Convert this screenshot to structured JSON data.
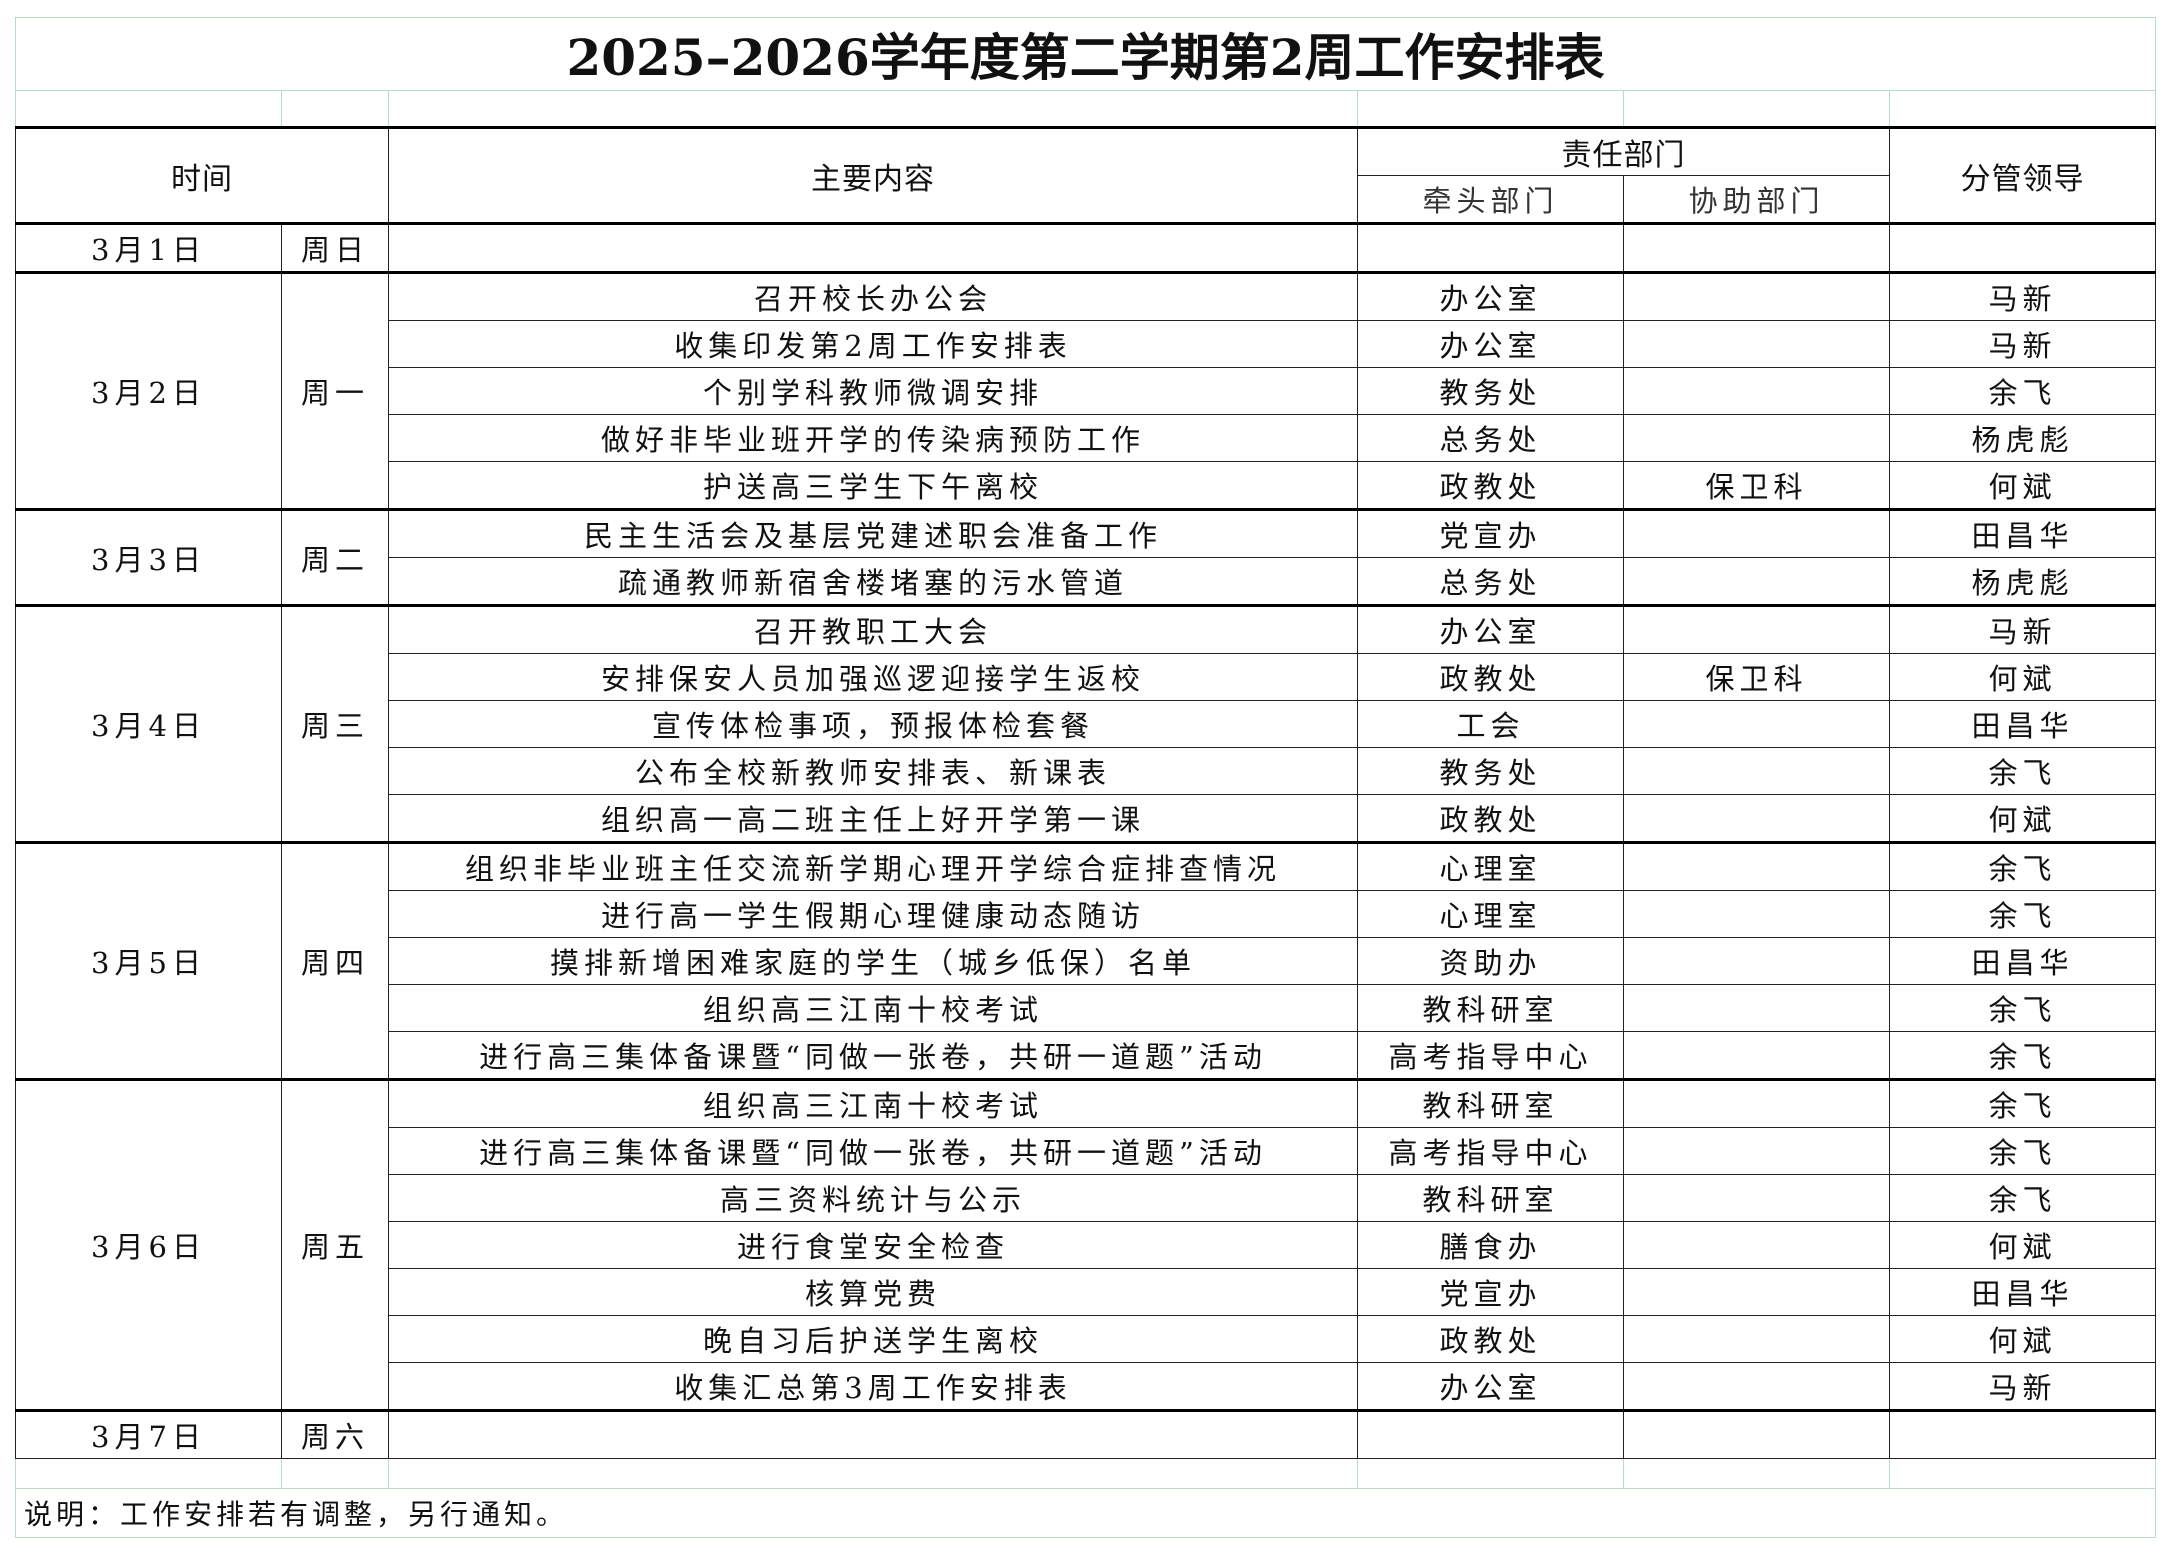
{
  "title": "2025–2026学年度第二学期第2周工作安排表",
  "headers": {
    "time": "时间",
    "content": "主要内容",
    "dept": "责任部门",
    "lead_dept": "牵头部门",
    "assist_dept": "协助部门",
    "leader": "分管领导"
  },
  "days": [
    {
      "date": "3月1日",
      "weekday": "周日",
      "items": [
        {
          "content": "",
          "lead": "",
          "assist": "",
          "leader": ""
        }
      ]
    },
    {
      "date": "3月2日",
      "weekday": "周一",
      "items": [
        {
          "content": "召开校长办公会",
          "lead": "办公室",
          "assist": "",
          "leader": "马新"
        },
        {
          "content": "收集印发第2周工作安排表",
          "lead": "办公室",
          "assist": "",
          "leader": "马新"
        },
        {
          "content": "个别学科教师微调安排",
          "lead": "教务处",
          "assist": "",
          "leader": "余飞"
        },
        {
          "content": "做好非毕业班开学的传染病预防工作",
          "lead": "总务处",
          "assist": "",
          "leader": "杨虎彪"
        },
        {
          "content": "护送高三学生下午离校",
          "lead": "政教处",
          "assist": "保卫科",
          "leader": "何斌"
        }
      ]
    },
    {
      "date": "3月3日",
      "weekday": "周二",
      "items": [
        {
          "content": "民主生活会及基层党建述职会准备工作",
          "lead": "党宣办",
          "assist": "",
          "leader": "田昌华"
        },
        {
          "content": "疏通教师新宿舍楼堵塞的污水管道",
          "lead": "总务处",
          "assist": "",
          "leader": "杨虎彪"
        }
      ]
    },
    {
      "date": "3月4日",
      "weekday": "周三",
      "items": [
        {
          "content": "召开教职工大会",
          "lead": "办公室",
          "assist": "",
          "leader": "马新"
        },
        {
          "content": "安排保安人员加强巡逻迎接学生返校",
          "lead": "政教处",
          "assist": "保卫科",
          "leader": "何斌"
        },
        {
          "content": "宣传体检事项，预报体检套餐",
          "lead": "工会",
          "assist": "",
          "leader": "田昌华"
        },
        {
          "content": "公布全校新教师安排表、新课表",
          "lead": "教务处",
          "assist": "",
          "leader": "余飞"
        },
        {
          "content": "组织高一高二班主任上好开学第一课",
          "lead": "政教处",
          "assist": "",
          "leader": "何斌"
        }
      ]
    },
    {
      "date": "3月5日",
      "weekday": "周四",
      "items": [
        {
          "content": "组织非毕业班主任交流新学期心理开学综合症排查情况",
          "lead": "心理室",
          "assist": "",
          "leader": "余飞"
        },
        {
          "content": "进行高一学生假期心理健康动态随访",
          "lead": "心理室",
          "assist": "",
          "leader": "余飞"
        },
        {
          "content": "摸排新增困难家庭的学生（城乡低保）名单",
          "lead": "资助办",
          "assist": "",
          "leader": "田昌华"
        },
        {
          "content": "组织高三江南十校考试",
          "lead": "教科研室",
          "assist": "",
          "leader": "余飞"
        },
        {
          "content": "进行高三集体备课暨“同做一张卷，共研一道题”活动",
          "lead": "高考指导中心",
          "assist": "",
          "leader": "余飞"
        }
      ]
    },
    {
      "date": "3月6日",
      "weekday": "周五",
      "items": [
        {
          "content": "组织高三江南十校考试",
          "lead": "教科研室",
          "assist": "",
          "leader": "余飞"
        },
        {
          "content": "进行高三集体备课暨“同做一张卷，共研一道题”活动",
          "lead": "高考指导中心",
          "assist": "",
          "leader": "余飞"
        },
        {
          "content": "高三资料统计与公示",
          "lead": "教科研室",
          "assist": "",
          "leader": "余飞"
        },
        {
          "content": "进行食堂安全检查",
          "lead": "膳食办",
          "assist": "",
          "leader": "何斌"
        },
        {
          "content": "核算党费",
          "lead": "党宣办",
          "assist": "",
          "leader": "田昌华"
        },
        {
          "content": "晚自习后护送学生离校",
          "lead": "政教处",
          "assist": "",
          "leader": "何斌"
        },
        {
          "content": "收集汇总第3周工作安排表",
          "lead": "办公室",
          "assist": "",
          "leader": "马新"
        }
      ]
    },
    {
      "date": "3月7日",
      "weekday": "周六",
      "items": [
        {
          "content": "",
          "lead": "",
          "assist": "",
          "leader": ""
        }
      ]
    }
  ],
  "note": "说明：工作安排若有调整，另行通知。"
}
